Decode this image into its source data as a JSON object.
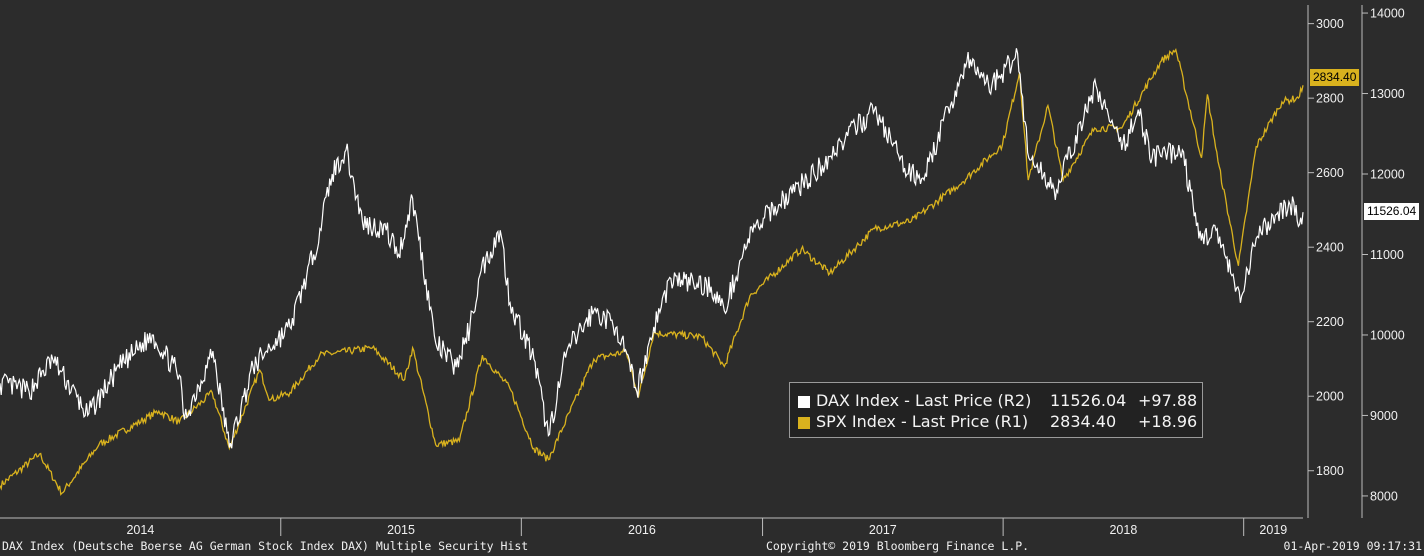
{
  "chart_data": {
    "type": "line",
    "x_range": [
      "2013-11",
      "2019-04"
    ],
    "x_tick_labels": [
      "2014",
      "2015",
      "2016",
      "2017",
      "2018",
      "2019"
    ],
    "axes": {
      "R1": {
        "ticks": [
          "3000",
          "2800",
          "2600",
          "2400",
          "2200",
          "2000",
          "1800"
        ],
        "ylim": [
          1700,
          3050
        ]
      },
      "R2": {
        "ticks": [
          "14000",
          "13000",
          "12000",
          "11000",
          "10000",
          "9000",
          "8000"
        ],
        "ylim": [
          7850,
          14100
        ]
      }
    },
    "series": [
      {
        "name": "DAX Index - Last Price (R2)",
        "axis": "R2",
        "color": "#ffffff",
        "last_value": "11526.04",
        "change": "+97.88",
        "points": [
          [
            "2013-11-01",
            9400
          ],
          [
            "2013-12-15",
            9300
          ],
          [
            "2014-01-20",
            9700
          ],
          [
            "2014-03-14",
            9000
          ],
          [
            "2014-05-01",
            9600
          ],
          [
            "2014-06-20",
            10000
          ],
          [
            "2014-07-31",
            9500
          ],
          [
            "2014-08-08",
            8950
          ],
          [
            "2014-09-20",
            9800
          ],
          [
            "2014-10-15",
            8600
          ],
          [
            "2014-11-20",
            9600
          ],
          [
            "2014-12-10",
            9800
          ],
          [
            "2015-01-15",
            10100
          ],
          [
            "2015-02-20",
            11000
          ],
          [
            "2015-03-20",
            12000
          ],
          [
            "2015-04-10",
            12300
          ],
          [
            "2015-05-05",
            11400
          ],
          [
            "2015-06-10",
            11300
          ],
          [
            "2015-06-29",
            11000
          ],
          [
            "2015-07-20",
            11700
          ],
          [
            "2015-08-24",
            9900
          ],
          [
            "2015-09-24",
            9600
          ],
          [
            "2015-10-15",
            10100
          ],
          [
            "2015-11-01",
            10800
          ],
          [
            "2015-11-30",
            11300
          ],
          [
            "2015-12-15",
            10400
          ],
          [
            "2016-01-20",
            9700
          ],
          [
            "2016-02-11",
            8750
          ],
          [
            "2016-03-10",
            9800
          ],
          [
            "2016-04-20",
            10300
          ],
          [
            "2016-05-25",
            10100
          ],
          [
            "2016-06-24",
            9300
          ],
          [
            "2016-07-20",
            10100
          ],
          [
            "2016-08-15",
            10700
          ],
          [
            "2016-10-15",
            10600
          ],
          [
            "2016-11-04",
            10300
          ],
          [
            "2016-12-10",
            11200
          ],
          [
            "2017-01-20",
            11600
          ],
          [
            "2017-03-20",
            12000
          ],
          [
            "2017-05-01",
            12400
          ],
          [
            "2017-06-20",
            12800
          ],
          [
            "2017-08-10",
            12000
          ],
          [
            "2017-09-05",
            12000
          ],
          [
            "2017-10-15",
            12900
          ],
          [
            "2017-11-07",
            13400
          ],
          [
            "2017-12-15",
            13100
          ],
          [
            "2018-01-23",
            13500
          ],
          [
            "2018-02-09",
            12200
          ],
          [
            "2018-03-23",
            11800
          ],
          [
            "2018-05-22",
            13100
          ],
          [
            "2018-06-30",
            12300
          ],
          [
            "2018-07-25",
            12800
          ],
          [
            "2018-08-15",
            12200
          ],
          [
            "2018-09-30",
            12300
          ],
          [
            "2018-10-25",
            11200
          ],
          [
            "2018-11-20",
            11300
          ],
          [
            "2018-12-27",
            10400
          ],
          [
            "2019-01-20",
            11200
          ],
          [
            "2019-02-20",
            11500
          ],
          [
            "2019-03-18",
            11650
          ],
          [
            "2019-03-25",
            11350
          ],
          [
            "2019-04-01",
            11526.04
          ]
        ]
      },
      {
        "name": "SPX Index - Last Price (R1)",
        "axis": "R1",
        "color": "#d9b21e",
        "last_value": "2834.40",
        "change": "+18.96",
        "points": [
          [
            "2013-11-01",
            1760
          ],
          [
            "2013-12-31",
            1845
          ],
          [
            "2014-02-03",
            1740
          ],
          [
            "2014-03-31",
            1870
          ],
          [
            "2014-06-30",
            1960
          ],
          [
            "2014-07-31",
            1930
          ],
          [
            "2014-09-19",
            2010
          ],
          [
            "2014-10-15",
            1860
          ],
          [
            "2014-11-30",
            2070
          ],
          [
            "2014-12-16",
            1990
          ],
          [
            "2015-01-15",
            2010
          ],
          [
            "2015-03-01",
            2110
          ],
          [
            "2015-05-20",
            2130
          ],
          [
            "2015-07-08",
            2045
          ],
          [
            "2015-07-20",
            2130
          ],
          [
            "2015-08-24",
            1870
          ],
          [
            "2015-09-29",
            1880
          ],
          [
            "2015-11-03",
            2110
          ],
          [
            "2015-12-15",
            2020
          ],
          [
            "2016-01-20",
            1860
          ],
          [
            "2016-02-11",
            1830
          ],
          [
            "2016-04-20",
            2100
          ],
          [
            "2016-06-08",
            2120
          ],
          [
            "2016-06-27",
            2000
          ],
          [
            "2016-07-20",
            2170
          ],
          [
            "2016-09-30",
            2160
          ],
          [
            "2016-11-04",
            2080
          ],
          [
            "2016-12-13",
            2270
          ],
          [
            "2017-03-01",
            2395
          ],
          [
            "2017-04-13",
            2330
          ],
          [
            "2017-06-20",
            2450
          ],
          [
            "2017-08-15",
            2470
          ],
          [
            "2017-10-31",
            2575
          ],
          [
            "2017-12-31",
            2675
          ],
          [
            "2018-01-26",
            2870
          ],
          [
            "2018-02-08",
            2580
          ],
          [
            "2018-03-10",
            2780
          ],
          [
            "2018-04-02",
            2580
          ],
          [
            "2018-05-20",
            2720
          ],
          [
            "2018-06-30",
            2720
          ],
          [
            "2018-08-29",
            2900
          ],
          [
            "2018-09-20",
            2930
          ],
          [
            "2018-10-29",
            2640
          ],
          [
            "2018-11-07",
            2810
          ],
          [
            "2018-11-23",
            2630
          ],
          [
            "2018-12-24",
            2350
          ],
          [
            "2019-01-20",
            2670
          ],
          [
            "2019-02-28",
            2790
          ],
          [
            "2019-03-22",
            2800
          ],
          [
            "2019-03-25",
            2800
          ],
          [
            "2019-04-01",
            2834.4
          ]
        ]
      }
    ]
  },
  "footer": {
    "left": "DAX Index (Deutsche Boerse AG German Stock Index DAX) Multiple Security Hist",
    "center": "Copyright© 2019 Bloomberg Finance L.P.",
    "right": "01-Apr-2019 09:17:31"
  },
  "colors": {
    "background": "#2c2c2c",
    "dax": "#ffffff",
    "spx": "#d9b21e",
    "legend_bg": "#222222"
  }
}
